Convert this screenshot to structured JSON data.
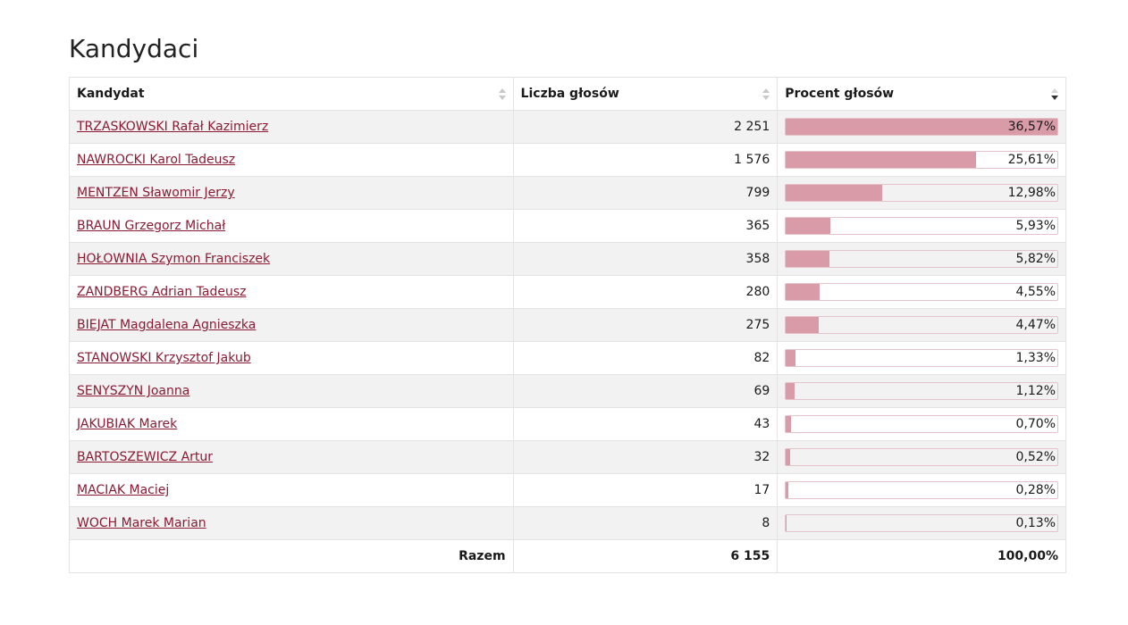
{
  "section": {
    "title": "Kandydaci"
  },
  "table": {
    "headers": {
      "candidate": "Kandydat",
      "votes": "Liczba głosów",
      "percent": "Procent głosów"
    },
    "rows": [
      {
        "name": "TRZASKOWSKI Rafał Kazimierz",
        "votes": "2 251",
        "percent": "36,57%",
        "share": 1.0
      },
      {
        "name": "NAWROCKI Karol Tadeusz",
        "votes": "1 576",
        "percent": "25,61%",
        "share": 0.7003
      },
      {
        "name": "MENTZEN Sławomir Jerzy",
        "votes": "799",
        "percent": "12,98%",
        "share": 0.3549
      },
      {
        "name": "BRAUN Grzegorz Michał",
        "votes": "365",
        "percent": "5,93%",
        "share": 0.1622
      },
      {
        "name": "HOŁOWNIA Szymon Franciszek",
        "votes": "358",
        "percent": "5,82%",
        "share": 0.1592
      },
      {
        "name": "ZANDBERG Adrian Tadeusz",
        "votes": "280",
        "percent": "4,55%",
        "share": 0.1244
      },
      {
        "name": "BIEJAT Magdalena Agnieszka",
        "votes": "275",
        "percent": "4,47%",
        "share": 0.1222
      },
      {
        "name": "STANOWSKI Krzysztof Jakub",
        "votes": "82",
        "percent": "1,33%",
        "share": 0.0364
      },
      {
        "name": "SENYSZYN Joanna",
        "votes": "69",
        "percent": "1,12%",
        "share": 0.0306
      },
      {
        "name": "JAKUBIAK Marek",
        "votes": "43",
        "percent": "0,70%",
        "share": 0.0191
      },
      {
        "name": "BARTOSZEWICZ Artur",
        "votes": "32",
        "percent": "0,52%",
        "share": 0.0142
      },
      {
        "name": "MACIAK Maciej",
        "votes": "17",
        "percent": "0,28%",
        "share": 0.0077
      },
      {
        "name": "WOCH Marek Marian",
        "votes": "8",
        "percent": "0,13%",
        "share": 0.0036
      }
    ],
    "footer": {
      "label": "Razem",
      "votes": "6 155",
      "percent": "100,00%"
    }
  },
  "colors": {
    "link": "#8b1a33",
    "bar_fill": "#d99ba8",
    "bar_border": "#e6c3cb"
  },
  "icons": {
    "sort": "sort-arrows-icon",
    "sort_active": "sort-descending-icon"
  }
}
